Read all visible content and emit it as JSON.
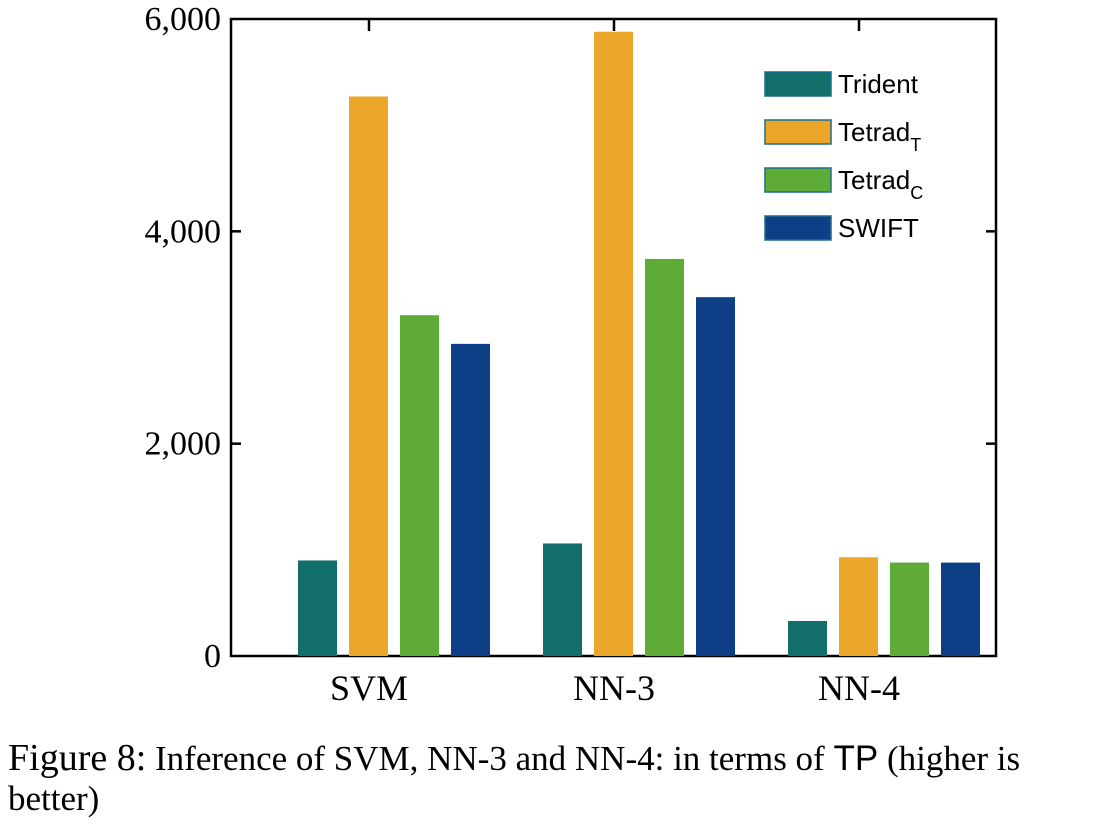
{
  "chart_data": {
    "type": "bar",
    "categories": [
      "SVM",
      "NN-3",
      "NN-4"
    ],
    "series": [
      {
        "name": "Trident",
        "sub": "",
        "color": "#116e6b",
        "values": [
          900,
          1060,
          330
        ]
      },
      {
        "name": "Tetrad",
        "sub": "T",
        "color": "#ec a62a",
        "values": [
          5270,
          5880,
          930
        ]
      },
      {
        "name": "Tetrad",
        "sub": "C",
        "color": "#5eac37",
        "values": [
          3210,
          3740,
          880
        ]
      },
      {
        "name": "SWIFT",
        "sub": "",
        "color": "#0e3e86",
        "values": [
          2940,
          3380,
          880
        ]
      }
    ],
    "ylim": [
      0,
      6000
    ],
    "yticks": [
      0,
      2000,
      4000,
      6000
    ],
    "ytick_labels": [
      "0",
      "2,000",
      "4,000",
      "6,000"
    ],
    "legend_position": "top-right",
    "grid": false,
    "title": "",
    "xlabel": "",
    "ylabel": ""
  },
  "caption": {
    "figure_label": "Figure 8:",
    "text_before_tp": " Inference of SVM, NN-3 and NN-4: in terms of ",
    "tp": "TP",
    "text_after_tp": " (higher is better)"
  }
}
